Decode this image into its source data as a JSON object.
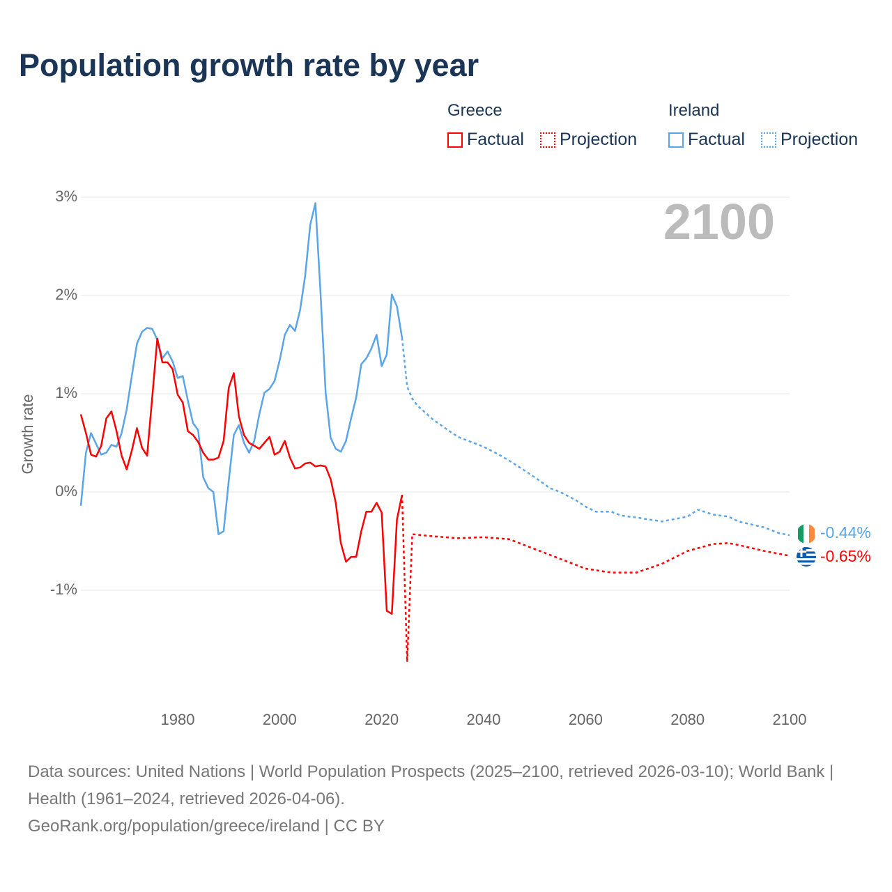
{
  "title": "Population growth rate by year",
  "legend": {
    "greece": {
      "label": "Greece",
      "factual": "Factual",
      "projection": "Projection",
      "color": "#ff0000"
    },
    "ireland": {
      "label": "Ireland",
      "factual": "Factual",
      "projection": "Projection",
      "color": "#5aa5e8"
    }
  },
  "current_year": "2100",
  "end_labels": {
    "ireland": "-0.44%",
    "greece": "-0.65%"
  },
  "footer": {
    "sources": "Data sources: United Nations | World Population Prospects (2025–2100, retrieved 2026-03-10); World Bank | Health (1961–2024, retrieved 2026-04-06).",
    "credit": "GeoRank.org/population/greece/ireland | CC BY"
  },
  "chart_data": {
    "type": "line",
    "title": "Population growth rate by year",
    "ylabel": "Growth rate",
    "xlabel": "",
    "ylim": [
      -2,
      3
    ],
    "xlim": [
      1961,
      2100
    ],
    "yticks": [
      "3%",
      "2%",
      "1%",
      "0%",
      "-1%"
    ],
    "ytick_values": [
      3,
      2,
      1,
      0,
      -1
    ],
    "xticks": [
      "1980",
      "2000",
      "2020",
      "2040",
      "2060",
      "2080",
      "2100"
    ],
    "xtick_values": [
      1980,
      2000,
      2020,
      2040,
      2060,
      2080,
      2100
    ],
    "series": [
      {
        "name": "Ireland Factual",
        "start": 1961,
        "values": [
          -0.14,
          0.4,
          0.6,
          0.49,
          0.38,
          0.4,
          0.48,
          0.46,
          0.6,
          0.84,
          1.18,
          1.51,
          1.63,
          1.67,
          1.66,
          1.55,
          1.36,
          1.43,
          1.33,
          1.16,
          1.18,
          0.93,
          0.7,
          0.63,
          0.15,
          0.04,
          0.0,
          -0.43,
          -0.4,
          0.11,
          0.58,
          0.68,
          0.5,
          0.4,
          0.52,
          0.79,
          1.01,
          1.05,
          1.13,
          1.34,
          1.6,
          1.7,
          1.64,
          1.85,
          2.2,
          2.72,
          2.94,
          2.03,
          1.02,
          0.55,
          0.44,
          0.41,
          0.52,
          0.75,
          0.96,
          1.3,
          1.36,
          1.46,
          1.6,
          1.28,
          1.4,
          2.01,
          1.89,
          1.57
        ]
      },
      {
        "name": "Ireland Projection",
        "x": [
          2024,
          2025,
          2026,
          2027,
          2030,
          2033,
          2035,
          2040,
          2043,
          2045,
          2048,
          2050,
          2053,
          2055,
          2058,
          2060,
          2062,
          2065,
          2067,
          2070,
          2075,
          2078,
          2080,
          2082,
          2085,
          2088,
          2090,
          2095,
          2098,
          2100
        ],
        "values": [
          1.57,
          1.07,
          0.95,
          0.88,
          0.74,
          0.63,
          0.56,
          0.46,
          0.38,
          0.32,
          0.22,
          0.15,
          0.04,
          0.0,
          -0.08,
          -0.15,
          -0.2,
          -0.2,
          -0.24,
          -0.26,
          -0.3,
          -0.27,
          -0.25,
          -0.18,
          -0.23,
          -0.25,
          -0.3,
          -0.36,
          -0.42,
          -0.44
        ]
      },
      {
        "name": "Greece Factual",
        "start": 1961,
        "values": [
          0.79,
          0.6,
          0.38,
          0.36,
          0.47,
          0.75,
          0.82,
          0.62,
          0.37,
          0.23,
          0.42,
          0.65,
          0.45,
          0.37,
          0.96,
          1.56,
          1.32,
          1.32,
          1.25,
          0.99,
          0.91,
          0.62,
          0.58,
          0.51,
          0.4,
          0.33,
          0.33,
          0.35,
          0.52,
          1.06,
          1.21,
          0.77,
          0.58,
          0.5,
          0.47,
          0.44,
          0.5,
          0.56,
          0.38,
          0.41,
          0.52,
          0.35,
          0.24,
          0.25,
          0.29,
          0.3,
          0.26,
          0.27,
          0.26,
          0.13,
          -0.11,
          -0.52,
          -0.71,
          -0.66,
          -0.66,
          -0.4,
          -0.2,
          -0.2,
          -0.11,
          -0.21,
          -1.21,
          -1.24,
          -0.28,
          -0.03
        ]
      },
      {
        "name": "Greece Projection",
        "x": [
          2024,
          2025,
          2026,
          2030,
          2035,
          2040,
          2045,
          2050,
          2055,
          2060,
          2065,
          2070,
          2075,
          2080,
          2085,
          2088,
          2090,
          2095,
          2100
        ],
        "values": [
          -0.03,
          -1.73,
          -0.43,
          -0.45,
          -0.47,
          -0.46,
          -0.48,
          -0.58,
          -0.68,
          -0.78,
          -0.82,
          -0.82,
          -0.73,
          -0.6,
          -0.53,
          -0.52,
          -0.54,
          -0.6,
          -0.65
        ]
      }
    ]
  }
}
